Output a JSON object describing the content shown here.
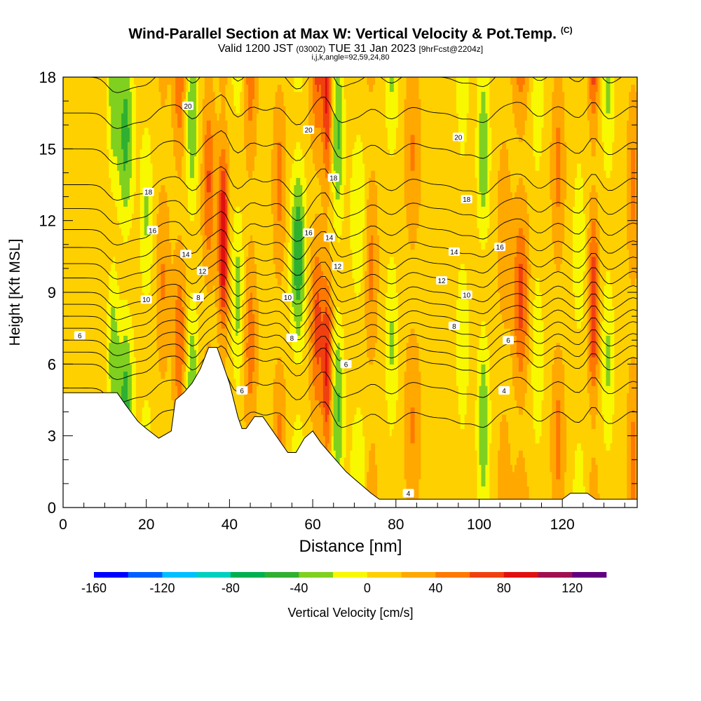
{
  "title": {
    "main": "Wind-Parallel Section at Max W: Vertical Velocity & Pot.Temp.",
    "copyright": "(C)",
    "valid_prefix": "Valid 1200 JST",
    "valid_utc": "(0300Z)",
    "valid_date": "TUE 31 Jan 2023",
    "forecast": "[9hrFcst@2204z]",
    "params": "i,j,k,angle=92,59,24,80"
  },
  "chart_data": {
    "type": "heatmap",
    "xlabel": "Distance [nm]",
    "ylabel": "Height [Kft MSL]",
    "xlim": [
      0,
      138
    ],
    "ylim": [
      0,
      18
    ],
    "x_ticks": [
      0,
      20,
      40,
      60,
      80,
      100,
      120
    ],
    "y_ticks": [
      0,
      3,
      6,
      9,
      12,
      15,
      18
    ],
    "colorbar": {
      "label": "Vertical Velocity [cm/s]",
      "ticks": [
        -160,
        -120,
        -80,
        -40,
        0,
        40,
        80,
        120
      ],
      "range": [
        -160,
        140
      ],
      "step": 20,
      "colors": [
        "#0000ff",
        "#0060ff",
        "#00c0ff",
        "#00d0c0",
        "#00b050",
        "#30b030",
        "#80d020",
        "#f8f800",
        "#ffd000",
        "#ffa800",
        "#ff7800",
        "#f04010",
        "#e01010",
        "#a01050",
        "#600080"
      ]
    },
    "velocity_columns": [
      {
        "x": 12,
        "halfwidth": 1.3,
        "value": -45
      },
      {
        "x": 15,
        "halfwidth": 2.0,
        "value": -60
      },
      {
        "x": 20,
        "halfwidth": 1.5,
        "value": -35
      },
      {
        "x": 24,
        "halfwidth": 1.5,
        "value": 30
      },
      {
        "x": 28,
        "halfwidth": 1.5,
        "value": 45
      },
      {
        "x": 31,
        "halfwidth": 1.5,
        "value": -50
      },
      {
        "x": 35,
        "halfwidth": 1.5,
        "value": 50
      },
      {
        "x": 38.5,
        "halfwidth": 1.2,
        "value": 90
      },
      {
        "x": 42,
        "halfwidth": 1.5,
        "value": -40
      },
      {
        "x": 45,
        "halfwidth": 1.5,
        "value": 40
      },
      {
        "x": 52,
        "halfwidth": 1.5,
        "value": 35
      },
      {
        "x": 56.5,
        "halfwidth": 1.8,
        "value": -70
      },
      {
        "x": 61,
        "halfwidth": 1.6,
        "value": 55
      },
      {
        "x": 63.5,
        "halfwidth": 1.2,
        "value": 70
      },
      {
        "x": 66,
        "halfwidth": 1.5,
        "value": -55
      },
      {
        "x": 71,
        "halfwidth": 2.0,
        "value": -30
      },
      {
        "x": 74,
        "halfwidth": 1.5,
        "value": 35
      },
      {
        "x": 79,
        "halfwidth": 1.5,
        "value": -35
      },
      {
        "x": 84,
        "halfwidth": 1.8,
        "value": 30
      },
      {
        "x": 96,
        "halfwidth": 1.5,
        "value": -30
      },
      {
        "x": 101,
        "halfwidth": 1.5,
        "value": -50
      },
      {
        "x": 106,
        "halfwidth": 1.5,
        "value": 25
      },
      {
        "x": 110,
        "halfwidth": 1.8,
        "value": 55
      },
      {
        "x": 114,
        "halfwidth": 1.5,
        "value": -30
      },
      {
        "x": 119,
        "halfwidth": 1.5,
        "value": 35
      },
      {
        "x": 124,
        "halfwidth": 1.5,
        "value": -30
      },
      {
        "x": 127.5,
        "halfwidth": 1.2,
        "value": 70
      },
      {
        "x": 131,
        "halfwidth": 1.5,
        "value": -35
      },
      {
        "x": 137,
        "halfwidth": 1.3,
        "value": 35
      }
    ],
    "terrain": {
      "x": [
        0,
        13,
        15,
        18,
        20,
        23,
        26,
        27,
        29,
        31,
        33,
        35,
        37,
        38,
        40,
        41,
        42,
        43,
        44,
        46,
        48,
        50,
        52,
        54,
        56,
        58,
        60,
        62,
        64,
        66,
        68,
        70,
        72,
        74,
        76,
        78,
        80,
        82,
        118,
        120,
        122,
        124,
        126,
        128,
        138
      ],
      "y": [
        4.8,
        4.8,
        4.3,
        3.6,
        3.3,
        2.9,
        3.2,
        4.5,
        4.8,
        5.2,
        5.8,
        6.7,
        6.7,
        6.2,
        5.2,
        4.5,
        3.8,
        3.3,
        3.3,
        3.8,
        3.8,
        3.3,
        2.8,
        2.3,
        2.3,
        2.9,
        3.2,
        2.7,
        2.3,
        1.9,
        1.5,
        1.2,
        0.9,
        0.6,
        0.35,
        0.35,
        0.35,
        0.35,
        0.35,
        0.35,
        0.6,
        0.6,
        0.6,
        0.35,
        0.35
      ]
    },
    "theta_profile": {
      "heights_kft": [
        18,
        16.5,
        15,
        13.5,
        12,
        10.5,
        9,
        7.5,
        6,
        4.5,
        3,
        1.5,
        0
      ],
      "theta_C": [
        21,
        20,
        19,
        18,
        16.5,
        14.5,
        12,
        9,
        6,
        4.5,
        3.5,
        2.5,
        1.5
      ]
    },
    "isentropes": [
      {
        "label": "20",
        "x": 30,
        "y": 16.8
      },
      {
        "label": "20",
        "x": 59,
        "y": 15.8
      },
      {
        "label": "20",
        "x": 95,
        "y": 15.5
      },
      {
        "label": "18",
        "x": 20.5,
        "y": 13.2
      },
      {
        "label": "18",
        "x": 65,
        "y": 13.8
      },
      {
        "label": "18",
        "x": 97,
        "y": 12.9
      },
      {
        "label": "16",
        "x": 21.5,
        "y": 11.6
      },
      {
        "label": "16",
        "x": 59,
        "y": 11.5
      },
      {
        "label": "16",
        "x": 105,
        "y": 10.9
      },
      {
        "label": "14",
        "x": 29.5,
        "y": 10.6
      },
      {
        "label": "14",
        "x": 64,
        "y": 11.3
      },
      {
        "label": "14",
        "x": 94,
        "y": 10.7
      },
      {
        "label": "12",
        "x": 33.5,
        "y": 9.9
      },
      {
        "label": "12",
        "x": 66,
        "y": 10.1
      },
      {
        "label": "12",
        "x": 91,
        "y": 9.5
      },
      {
        "label": "10",
        "x": 20,
        "y": 8.7
      },
      {
        "label": "10",
        "x": 54,
        "y": 8.8
      },
      {
        "label": "10",
        "x": 97,
        "y": 8.9
      },
      {
        "label": "8",
        "x": 32.5,
        "y": 8.8
      },
      {
        "label": "8",
        "x": 55,
        "y": 7.1
      },
      {
        "label": "8",
        "x": 94,
        "y": 7.6
      },
      {
        "label": "6",
        "x": 4,
        "y": 7.2
      },
      {
        "label": "6",
        "x": 68,
        "y": 6.0
      },
      {
        "label": "6",
        "x": 107,
        "y": 7.0
      },
      {
        "label": "6",
        "x": 43,
        "y": 4.9
      },
      {
        "label": "4",
        "x": 106,
        "y": 4.9
      },
      {
        "label": "4",
        "x": 83,
        "y": 0.6
      }
    ]
  }
}
